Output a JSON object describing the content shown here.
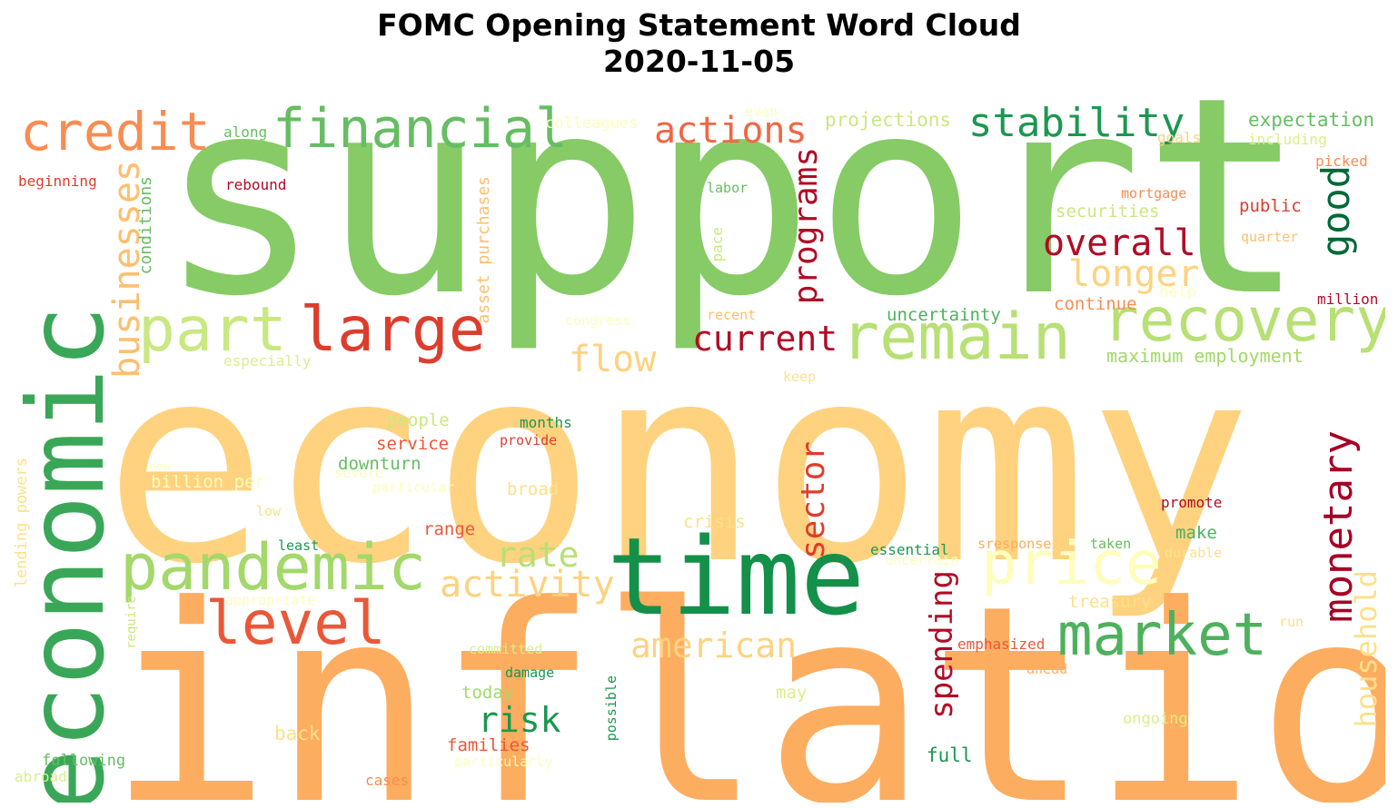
{
  "title": {
    "line1": "FOMC Opening Statement Word Cloud",
    "line2": "2020-11-05"
  },
  "words": [
    "support",
    "economy",
    "inflation",
    "economic",
    "time",
    "pandemic",
    "remain",
    "recovery",
    "price",
    "market",
    "financial",
    "credit",
    "stability",
    "level",
    "large",
    "part",
    "actions",
    "monetary",
    "good",
    "businesses",
    "programs",
    "overall",
    "longer",
    "current",
    "flow",
    "rate",
    "activity",
    "american",
    "sector",
    "spending",
    "risk",
    "household",
    "projections",
    "expectation",
    "colleagues",
    "along",
    "even",
    "goals",
    "including",
    "picked",
    "beginning",
    "rebound",
    "labor",
    "mortgage",
    "securities",
    "public",
    "quarter",
    "conditions",
    "asset purchases",
    "pace",
    "help",
    "million",
    "continue",
    "recent",
    "congress",
    "uncertainty",
    "maximum employment",
    "especially",
    "keep",
    "people",
    "months",
    "service",
    "provide",
    "downturn",
    "billion per",
    "severe",
    "particular",
    "broad",
    "new",
    "lending powers",
    "low",
    "crisis",
    "promote",
    "range",
    "least",
    "essential",
    "sresponse",
    "taken",
    "make",
    "durable",
    "uncertain",
    "require",
    "appropriate",
    "treasury",
    "run",
    "emphasized",
    "committed",
    "damage",
    "ahead",
    "possible",
    "today",
    "may",
    "ongoing",
    "back",
    "following",
    "families",
    "full",
    "particularly",
    "abroad",
    "cases"
  ]
}
